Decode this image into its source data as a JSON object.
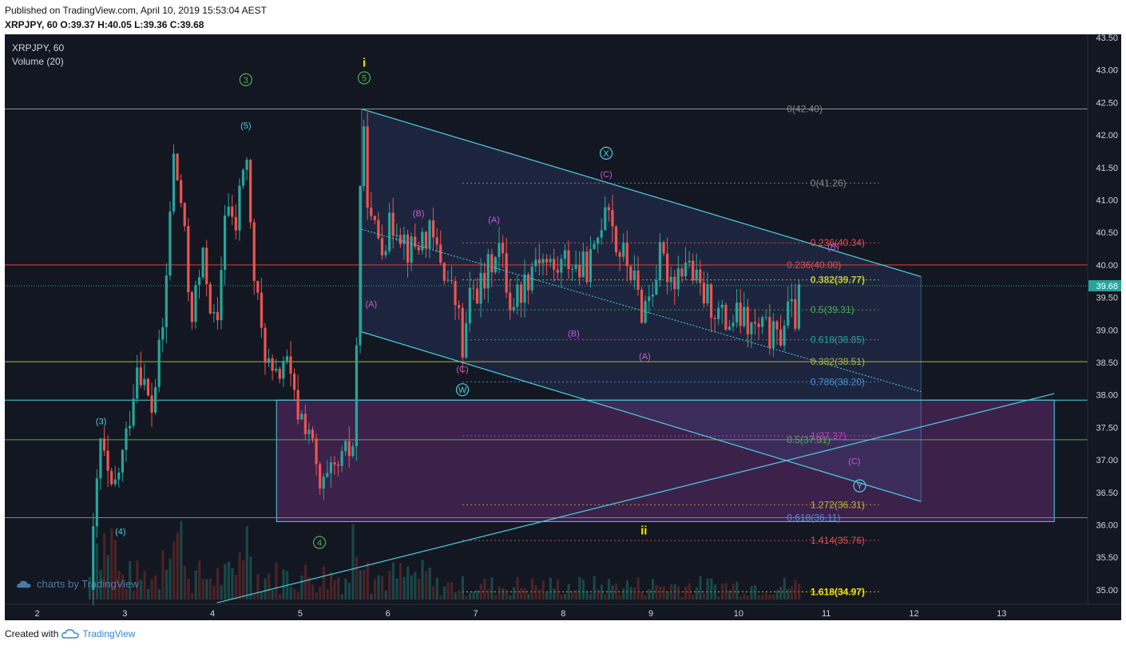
{
  "header": {
    "published": "Published on TradingView.com, April 10, 2019 15:53:04 AEST",
    "symbol_line": "XRPJPY, 60 O:39.37 H:40.05 L:39.36 C:39.68"
  },
  "legend": {
    "symbol": "XRPJPY, 60",
    "indicator": "Volume (20)"
  },
  "watermark": "charts by TradingView",
  "footer": {
    "created_with": "Created with",
    "brand": "TradingView"
  },
  "colors": {
    "background": "#131722",
    "up_candle": "#26a69a",
    "down_candle": "#ef5350",
    "cyan": "#4dd0e1",
    "magenta": "#c75bd6",
    "yellow_green": "#b5c43a",
    "green": "#4caf50"
  },
  "chart_data": {
    "type": "candlestick",
    "title": "",
    "price_axis": {
      "ticks": [
        "43.50",
        "43.00",
        "42.50",
        "42.00",
        "41.50",
        "41.00",
        "40.50",
        "40.00",
        "39.50",
        "39.00",
        "38.50",
        "38.00",
        "37.50",
        "37.00",
        "36.50",
        "36.00",
        "35.50",
        "35.00"
      ],
      "last_price": "39.68",
      "range": [
        34.8,
        43.55
      ]
    },
    "time_axis": {
      "ticks": [
        "2",
        "3",
        "4",
        "5",
        "6",
        "7",
        "8",
        "9",
        "10",
        "11",
        "12",
        "13"
      ],
      "range_days": [
        1.6,
        13.6
      ]
    },
    "fib_levels": [
      {
        "label": "0(42.40)",
        "price": 42.4,
        "color": "#888888"
      },
      {
        "label": "0(41.26)",
        "price": 41.26,
        "color": "#888888"
      },
      {
        "label": "0.236(40.34)",
        "price": 40.34,
        "color": "#e35050"
      },
      {
        "label": "0.236(40.00)",
        "price": 40.0,
        "color": "#e35050"
      },
      {
        "label": "0.382(39.77)",
        "price": 39.77,
        "color": "#c2c93a"
      },
      {
        "label": "0.5(39.31)",
        "price": 39.31,
        "color": "#4caf50"
      },
      {
        "label": "0.618(38.85)",
        "price": 38.85,
        "color": "#26a69a"
      },
      {
        "label": "0.382(38.51)",
        "price": 38.51,
        "color": "#a6b83a"
      },
      {
        "label": "0.786(38.20)",
        "price": 38.2,
        "color": "#4a90d9"
      },
      {
        "label": "1(37.37)",
        "price": 37.37,
        "color": "#d13ad1"
      },
      {
        "label": "0.5(37.31)",
        "price": 37.31,
        "color": "#4caf50"
      },
      {
        "label": "1.272(36.31)",
        "price": 36.31,
        "color": "#c2b23a"
      },
      {
        "label": "0.618(36.11)",
        "price": 36.11,
        "color": "#4a90d9"
      },
      {
        "label": "1.414(35.76)",
        "price": 35.76,
        "color": "#e35050"
      },
      {
        "label": "1.618(34.97)",
        "price": 34.97,
        "color": "#f2e600"
      }
    ],
    "wave_labels": [
      {
        "text": "i",
        "day": 5.73,
        "price": 43.1,
        "color": "#f2e600",
        "circle": false
      },
      {
        "text": "ii",
        "day": 8.92,
        "price": 35.9,
        "color": "#f2e600",
        "circle": false
      },
      {
        "text": "3",
        "day": 4.38,
        "price": 42.85,
        "color": "#4caf50",
        "circle": true
      },
      {
        "text": "5",
        "day": 5.73,
        "price": 42.88,
        "color": "#4caf50",
        "circle": true
      },
      {
        "text": "4",
        "day": 5.22,
        "price": 35.73,
        "color": "#4caf50",
        "circle": true
      },
      {
        "text": "(5)",
        "day": 4.38,
        "price": 42.15,
        "color": "#4dd0e1",
        "circle": false
      },
      {
        "text": "(3)",
        "day": 2.73,
        "price": 37.6,
        "color": "#4dd0e1",
        "circle": false
      },
      {
        "text": "(4)",
        "day": 2.95,
        "price": 35.9,
        "color": "#4dd0e1",
        "circle": false
      },
      {
        "text": "X",
        "day": 8.49,
        "price": 41.72,
        "color": "#4dd0e1",
        "circle": true
      },
      {
        "text": "W",
        "day": 6.85,
        "price": 38.08,
        "color": "#4dd0e1",
        "circle": true
      },
      {
        "text": "Y",
        "day": 11.38,
        "price": 36.6,
        "color": "#4dd0e1",
        "circle": true
      },
      {
        "text": "(C)",
        "day": 8.49,
        "price": 41.4,
        "color": "#c75bd6",
        "circle": false
      },
      {
        "text": "(B)",
        "day": 6.35,
        "price": 40.8,
        "color": "#c75bd6",
        "circle": false
      },
      {
        "text": "(A)",
        "day": 7.21,
        "price": 40.7,
        "color": "#c75bd6",
        "circle": false
      },
      {
        "text": "(B)",
        "day": 11.08,
        "price": 40.28,
        "color": "#c75bd6",
        "circle": false
      },
      {
        "text": "(A)",
        "day": 5.81,
        "price": 39.4,
        "color": "#c75bd6",
        "circle": false
      },
      {
        "text": "(B)",
        "day": 8.12,
        "price": 38.95,
        "color": "#c75bd6",
        "circle": false
      },
      {
        "text": "(A)",
        "day": 8.93,
        "price": 38.6,
        "color": "#c75bd6",
        "circle": false
      },
      {
        "text": "(C)",
        "day": 6.85,
        "price": 38.4,
        "color": "#c75bd6",
        "circle": false
      },
      {
        "text": "(C)",
        "day": 11.32,
        "price": 36.98,
        "color": "#c75bd6",
        "circle": false
      }
    ]
  }
}
